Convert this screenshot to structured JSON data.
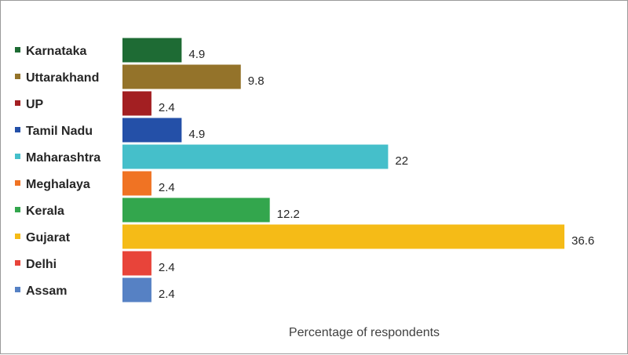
{
  "chart_data": {
    "type": "bar",
    "orientation": "horizontal",
    "categories": [
      "Karnataka",
      "Uttarakhand",
      "UP",
      "Tamil Nadu",
      "Maharashtra",
      "Meghalaya",
      "Kerala",
      "Gujarat",
      "Delhi",
      "Assam"
    ],
    "values": [
      4.9,
      9.8,
      2.4,
      4.9,
      22,
      2.4,
      12.2,
      36.6,
      2.4,
      2.4
    ],
    "value_labels": [
      "4.9",
      "9.8",
      "2.4",
      "4.9",
      "22",
      "2.4",
      "12.2",
      "36.6",
      "2.4",
      "2.4"
    ],
    "colors": [
      "#1e6b34",
      "#94732a",
      "#a31f22",
      "#2450a8",
      "#45bfca",
      "#f07323",
      "#33a64d",
      "#f5bb17",
      "#e8443a",
      "#5681c4"
    ],
    "xlabel": "Percentage of respondents",
    "ylabel": "",
    "xlim": [
      0,
      36.6
    ],
    "grid": false,
    "legend": "left"
  }
}
